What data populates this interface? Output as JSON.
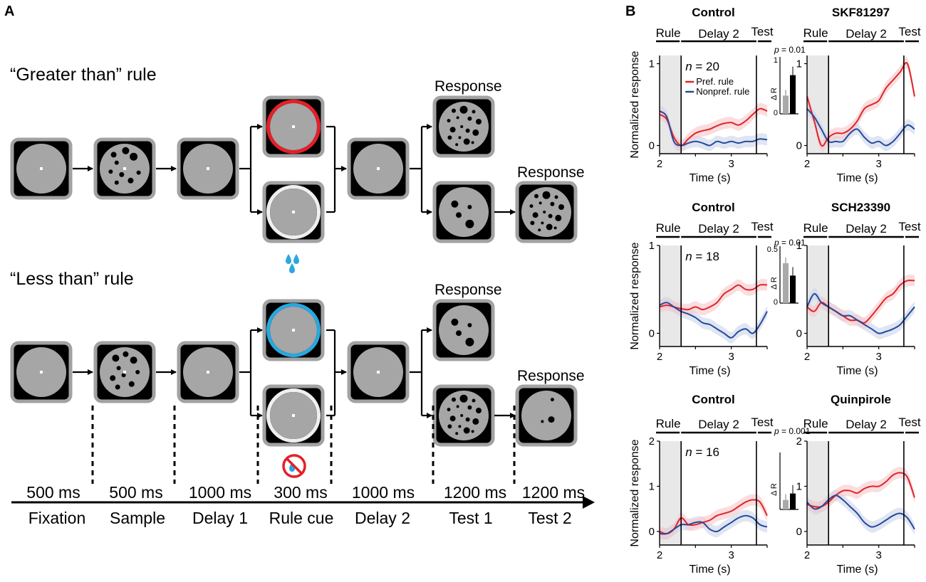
{
  "panel_a": {
    "label": "A",
    "rule_titles": [
      "“Greater than” rule",
      "“Less than” rule"
    ],
    "response_label": "Response",
    "durations": [
      "500 ms",
      "500 ms",
      "1000 ms",
      "300 ms",
      "1000 ms",
      "1200 ms",
      "1200 ms"
    ],
    "epochs": [
      "Fixation",
      "Sample",
      "Delay 1",
      "Rule cue",
      "Delay 2",
      "Test 1",
      "Test 2"
    ],
    "colors": {
      "greater_cue": "#e32028",
      "less_cue": "#27a8e0",
      "reward_drops": "#2aa7df",
      "no_reward": "#e32028"
    }
  },
  "panel_b": {
    "label": "B",
    "segment_labels": {
      "rule": "Rule",
      "delay": "Delay 2",
      "test": "Test"
    },
    "ylabel": "Normalized response",
    "xlabel": "Time (s)",
    "inset_ylabel": "Δ R",
    "legend": {
      "pref": "Pref. rule",
      "nonpref": "Nonpref. rule"
    },
    "series_colors": {
      "pref": "#e0242b",
      "nonpref": "#234a9c"
    },
    "rows": [
      {
        "n": "20",
        "p": "= 0.01",
        "inset_ticks": [
          "1",
          "0"
        ],
        "inset_values": [
          0.32,
          0.68
        ],
        "yticks": [
          "1",
          "0"
        ],
        "xticks": [
          "2",
          "3"
        ]
      },
      {
        "n": "18",
        "p": "= 0.01",
        "inset_ticks": [
          "0.5",
          "0"
        ],
        "inset_values": [
          0.42,
          0.29
        ],
        "yticks": [
          "1",
          "0"
        ],
        "xticks": [
          "2",
          "3"
        ]
      },
      {
        "n": "16",
        "p": "= 0.001",
        "inset_ticks": [],
        "inset_values": [
          0.25,
          0.42
        ],
        "yticks": [
          "2",
          "1",
          "0"
        ],
        "xticks": [
          "2",
          "3"
        ]
      }
    ],
    "chart_data": [
      {
        "type": "line",
        "title": "Control",
        "xlabel": "Time (s)",
        "ylabel": "Normalized response",
        "xlim": [
          2,
          3.5
        ],
        "ylim": [
          -0.1,
          1.1
        ],
        "x": [
          2.0,
          2.1,
          2.2,
          2.3,
          2.4,
          2.5,
          2.6,
          2.7,
          2.8,
          2.9,
          3.0,
          3.1,
          3.2,
          3.3,
          3.4,
          3.5
        ],
        "series": [
          {
            "name": "Pref. rule",
            "values": [
              0.38,
              0.32,
              0.1,
              0.0,
              0.08,
              0.15,
              0.18,
              0.2,
              0.24,
              0.27,
              0.28,
              0.25,
              0.3,
              0.38,
              0.45,
              0.42
            ]
          },
          {
            "name": "Nonpref. rule",
            "values": [
              0.42,
              0.35,
              0.05,
              0.0,
              0.03,
              0.05,
              0.03,
              0.0,
              0.05,
              0.03,
              0.05,
              0.03,
              0.05,
              0.05,
              0.08,
              0.07
            ]
          }
        ]
      },
      {
        "type": "line",
        "title": "SKF81297",
        "xlabel": "Time (s)",
        "ylabel": "",
        "xlim": [
          2,
          3.5
        ],
        "ylim": [
          -0.1,
          1.1
        ],
        "x": [
          2.0,
          2.1,
          2.2,
          2.3,
          2.4,
          2.5,
          2.6,
          2.7,
          2.8,
          2.9,
          3.0,
          3.1,
          3.2,
          3.3,
          3.4,
          3.5
        ],
        "series": [
          {
            "name": "Pref. rule",
            "values": [
              0.6,
              0.3,
              0.0,
              0.1,
              0.15,
              0.15,
              0.2,
              0.3,
              0.45,
              0.5,
              0.55,
              0.7,
              0.8,
              0.9,
              1.0,
              0.6
            ]
          },
          {
            "name": "Nonpref. rule",
            "values": [
              0.45,
              0.35,
              0.2,
              0.05,
              0.05,
              0.05,
              0.15,
              0.2,
              0.1,
              0.03,
              0.05,
              0.0,
              0.05,
              0.15,
              0.25,
              0.2
            ]
          }
        ]
      },
      {
        "type": "line",
        "title": "Control",
        "xlabel": "Time (s)",
        "ylabel": "Normalized response",
        "xlim": [
          2,
          3.5
        ],
        "ylim": [
          -0.15,
          1.0
        ],
        "x": [
          2.0,
          2.1,
          2.2,
          2.3,
          2.4,
          2.5,
          2.6,
          2.7,
          2.8,
          2.9,
          3.0,
          3.1,
          3.2,
          3.3,
          3.4,
          3.5
        ],
        "series": [
          {
            "name": "Pref. rule",
            "values": [
              0.3,
              0.32,
              0.3,
              0.28,
              0.27,
              0.3,
              0.27,
              0.3,
              0.35,
              0.45,
              0.5,
              0.55,
              0.5,
              0.5,
              0.55,
              0.55
            ]
          },
          {
            "name": "Nonpref. rule",
            "values": [
              0.32,
              0.35,
              0.3,
              0.25,
              0.22,
              0.18,
              0.12,
              0.1,
              0.05,
              0.0,
              -0.05,
              0.02,
              0.05,
              0.0,
              0.1,
              0.25
            ]
          }
        ]
      },
      {
        "type": "line",
        "title": "SCH23390",
        "xlabel": "Time (s)",
        "ylabel": "",
        "xlim": [
          2,
          3.5
        ],
        "ylim": [
          -0.15,
          1.0
        ],
        "x": [
          2.0,
          2.1,
          2.2,
          2.3,
          2.4,
          2.5,
          2.6,
          2.7,
          2.8,
          2.9,
          3.0,
          3.1,
          3.2,
          3.3,
          3.4,
          3.5
        ],
        "series": [
          {
            "name": "Pref. rule",
            "values": [
              0.3,
              0.25,
              0.35,
              0.3,
              0.25,
              0.2,
              0.15,
              0.15,
              0.12,
              0.2,
              0.3,
              0.4,
              0.45,
              0.55,
              0.6,
              0.6
            ]
          },
          {
            "name": "Nonpref. rule",
            "values": [
              0.3,
              0.45,
              0.35,
              0.3,
              0.25,
              0.2,
              0.2,
              0.15,
              0.1,
              0.05,
              0.0,
              0.02,
              0.05,
              0.1,
              0.2,
              0.3
            ]
          }
        ]
      },
      {
        "type": "line",
        "title": "Control",
        "xlabel": "Time (s)",
        "ylabel": "Normalized response",
        "xlim": [
          2,
          3.5
        ],
        "ylim": [
          -0.3,
          2.0
        ],
        "x": [
          2.0,
          2.1,
          2.2,
          2.3,
          2.4,
          2.5,
          2.6,
          2.7,
          2.8,
          2.9,
          3.0,
          3.1,
          3.2,
          3.3,
          3.4,
          3.5
        ],
        "series": [
          {
            "name": "Pref. rule",
            "values": [
              0.0,
              -0.05,
              0.05,
              0.3,
              0.15,
              0.15,
              0.2,
              0.25,
              0.35,
              0.4,
              0.45,
              0.55,
              0.65,
              0.7,
              0.65,
              0.35
            ]
          },
          {
            "name": "Nonpref. rule",
            "values": [
              -0.05,
              -0.05,
              0.05,
              0.15,
              0.15,
              0.2,
              0.2,
              0.05,
              0.0,
              0.1,
              0.2,
              0.3,
              0.35,
              0.3,
              0.15,
              0.1
            ]
          }
        ]
      },
      {
        "type": "line",
        "title": "Quinpirole",
        "xlabel": "Time (s)",
        "ylabel": "",
        "xlim": [
          2,
          3.5
        ],
        "ylim": [
          -0.3,
          2.0
        ],
        "x": [
          2.0,
          2.1,
          2.2,
          2.3,
          2.4,
          2.5,
          2.6,
          2.7,
          2.8,
          2.9,
          3.0,
          3.1,
          3.2,
          3.3,
          3.4,
          3.5
        ],
        "series": [
          {
            "name": "Pref. rule",
            "values": [
              0.6,
              0.55,
              0.55,
              0.65,
              0.8,
              0.9,
              0.9,
              0.85,
              0.95,
              1.0,
              1.0,
              1.1,
              1.25,
              1.3,
              1.2,
              0.75
            ]
          },
          {
            "name": "Nonpref. rule",
            "values": [
              0.65,
              0.5,
              0.55,
              0.7,
              0.8,
              0.7,
              0.55,
              0.4,
              0.2,
              0.1,
              0.15,
              0.25,
              0.35,
              0.4,
              0.3,
              0.05
            ]
          }
        ]
      }
    ]
  }
}
